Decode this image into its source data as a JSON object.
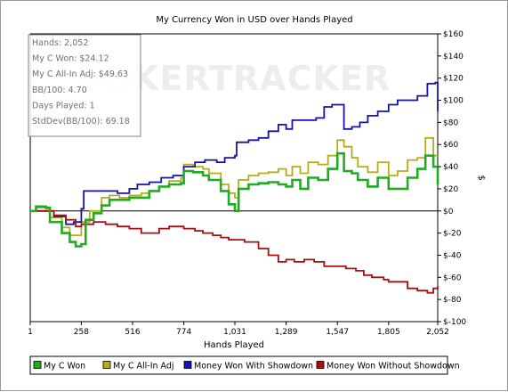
{
  "chart_data": {
    "type": "line",
    "title": "My Currency Won in USD over Hands Played",
    "xlabel": "Hands Played",
    "ylabel": "$",
    "x_ticks": [
      1,
      258,
      516,
      774,
      1031,
      1289,
      1547,
      1805,
      2052
    ],
    "xlim": [
      1,
      2052
    ],
    "y_ticks": [
      160,
      140,
      120,
      100,
      80,
      60,
      40,
      20,
      0,
      -20,
      -40,
      -60,
      -80,
      -100
    ],
    "y_tick_labels": [
      "$160",
      "$140",
      "$120",
      "$100",
      "$80",
      "$60",
      "$40",
      "$20",
      "$0",
      "$-20",
      "$-40",
      "$-60",
      "$-80",
      "$-100"
    ],
    "ylim": [
      -100,
      160
    ],
    "grid": false,
    "legend": "bottom",
    "watermark": "POKERTRACKER",
    "info_box": [
      "Hands: 2,052",
      "My C Won: $24.12",
      "My C All-In Adj: $49.63",
      "BB/100: 4.70",
      "Days Played: 1",
      "StdDev(BB/100): 69.18"
    ],
    "series": [
      {
        "name": "My C Won",
        "color": "#22aa22",
        "points": [
          [
            1,
            0
          ],
          [
            30,
            4
          ],
          [
            80,
            3
          ],
          [
            100,
            -10
          ],
          [
            160,
            -20
          ],
          [
            200,
            -28
          ],
          [
            230,
            -32
          ],
          [
            258,
            -30
          ],
          [
            280,
            -8
          ],
          [
            320,
            -2
          ],
          [
            360,
            5
          ],
          [
            400,
            10
          ],
          [
            450,
            10
          ],
          [
            500,
            12
          ],
          [
            560,
            12
          ],
          [
            600,
            18
          ],
          [
            650,
            22
          ],
          [
            700,
            24
          ],
          [
            760,
            25
          ],
          [
            774,
            36
          ],
          [
            820,
            35
          ],
          [
            870,
            32
          ],
          [
            900,
            28
          ],
          [
            960,
            18
          ],
          [
            1000,
            6
          ],
          [
            1031,
            0
          ],
          [
            1050,
            20
          ],
          [
            1100,
            24
          ],
          [
            1150,
            25
          ],
          [
            1200,
            26
          ],
          [
            1250,
            24
          ],
          [
            1289,
            22
          ],
          [
            1320,
            28
          ],
          [
            1360,
            20
          ],
          [
            1400,
            30
          ],
          [
            1450,
            28
          ],
          [
            1500,
            38
          ],
          [
            1547,
            52
          ],
          [
            1580,
            36
          ],
          [
            1620,
            34
          ],
          [
            1650,
            28
          ],
          [
            1700,
            22
          ],
          [
            1750,
            30
          ],
          [
            1805,
            20
          ],
          [
            1850,
            20
          ],
          [
            1900,
            30
          ],
          [
            1950,
            38
          ],
          [
            1990,
            50
          ],
          [
            2030,
            40
          ],
          [
            2052,
            24
          ]
        ]
      },
      {
        "name": "My C All-In Adj",
        "color": "#b5ad1c",
        "points": [
          [
            1,
            0
          ],
          [
            30,
            3
          ],
          [
            80,
            2
          ],
          [
            100,
            -6
          ],
          [
            160,
            -15
          ],
          [
            200,
            -22
          ],
          [
            258,
            -10
          ],
          [
            300,
            0
          ],
          [
            360,
            12
          ],
          [
            400,
            14
          ],
          [
            450,
            12
          ],
          [
            500,
            14
          ],
          [
            560,
            16
          ],
          [
            600,
            18
          ],
          [
            650,
            22
          ],
          [
            700,
            27
          ],
          [
            760,
            30
          ],
          [
            774,
            42
          ],
          [
            820,
            40
          ],
          [
            870,
            38
          ],
          [
            900,
            34
          ],
          [
            960,
            24
          ],
          [
            1000,
            16
          ],
          [
            1031,
            12
          ],
          [
            1050,
            28
          ],
          [
            1100,
            32
          ],
          [
            1150,
            34
          ],
          [
            1200,
            35
          ],
          [
            1250,
            38
          ],
          [
            1289,
            32
          ],
          [
            1320,
            40
          ],
          [
            1360,
            34
          ],
          [
            1400,
            44
          ],
          [
            1450,
            42
          ],
          [
            1500,
            50
          ],
          [
            1547,
            64
          ],
          [
            1580,
            58
          ],
          [
            1620,
            48
          ],
          [
            1650,
            40
          ],
          [
            1700,
            35
          ],
          [
            1750,
            44
          ],
          [
            1805,
            32
          ],
          [
            1850,
            36
          ],
          [
            1900,
            46
          ],
          [
            1950,
            48
          ],
          [
            1990,
            66
          ],
          [
            2030,
            50
          ],
          [
            2052,
            50
          ]
        ]
      },
      {
        "name": "Money Won With Showdown",
        "color": "#1414a6",
        "points": [
          [
            1,
            0
          ],
          [
            60,
            0
          ],
          [
            120,
            -5
          ],
          [
            180,
            -12
          ],
          [
            220,
            -10
          ],
          [
            258,
            2
          ],
          [
            270,
            18
          ],
          [
            330,
            18
          ],
          [
            380,
            18
          ],
          [
            440,
            16
          ],
          [
            500,
            20
          ],
          [
            540,
            24
          ],
          [
            600,
            26
          ],
          [
            660,
            30
          ],
          [
            720,
            32
          ],
          [
            774,
            40
          ],
          [
            830,
            44
          ],
          [
            880,
            46
          ],
          [
            940,
            44
          ],
          [
            980,
            48
          ],
          [
            1031,
            50
          ],
          [
            1040,
            62
          ],
          [
            1100,
            64
          ],
          [
            1150,
            66
          ],
          [
            1200,
            72
          ],
          [
            1250,
            78
          ],
          [
            1289,
            74
          ],
          [
            1320,
            82
          ],
          [
            1360,
            82
          ],
          [
            1400,
            82
          ],
          [
            1440,
            84
          ],
          [
            1480,
            94
          ],
          [
            1520,
            96
          ],
          [
            1547,
            96
          ],
          [
            1580,
            74
          ],
          [
            1620,
            76
          ],
          [
            1660,
            80
          ],
          [
            1700,
            86
          ],
          [
            1750,
            90
          ],
          [
            1805,
            96
          ],
          [
            1850,
            100
          ],
          [
            1900,
            100
          ],
          [
            1950,
            104
          ],
          [
            2000,
            115
          ],
          [
            2040,
            116
          ],
          [
            2052,
            90
          ]
        ]
      },
      {
        "name": "Money Won Without Showdown",
        "color": "#a81010",
        "points": [
          [
            1,
            0
          ],
          [
            60,
            0
          ],
          [
            120,
            -4
          ],
          [
            180,
            -8
          ],
          [
            230,
            -14
          ],
          [
            258,
            -12
          ],
          [
            320,
            -10
          ],
          [
            380,
            -12
          ],
          [
            440,
            -14
          ],
          [
            500,
            -16
          ],
          [
            560,
            -20
          ],
          [
            600,
            -20
          ],
          [
            650,
            -16
          ],
          [
            700,
            -14
          ],
          [
            774,
            -16
          ],
          [
            830,
            -18
          ],
          [
            870,
            -20
          ],
          [
            920,
            -22
          ],
          [
            960,
            -24
          ],
          [
            1000,
            -26
          ],
          [
            1031,
            -26
          ],
          [
            1080,
            -28
          ],
          [
            1150,
            -34
          ],
          [
            1200,
            -40
          ],
          [
            1250,
            -46
          ],
          [
            1289,
            -44
          ],
          [
            1330,
            -46
          ],
          [
            1380,
            -44
          ],
          [
            1430,
            -46
          ],
          [
            1480,
            -50
          ],
          [
            1547,
            -50
          ],
          [
            1590,
            -52
          ],
          [
            1640,
            -54
          ],
          [
            1680,
            -58
          ],
          [
            1720,
            -60
          ],
          [
            1780,
            -62
          ],
          [
            1805,
            -64
          ],
          [
            1850,
            -64
          ],
          [
            1900,
            -70
          ],
          [
            1950,
            -72
          ],
          [
            2000,
            -74
          ],
          [
            2030,
            -70
          ],
          [
            2052,
            -68
          ]
        ]
      }
    ]
  }
}
